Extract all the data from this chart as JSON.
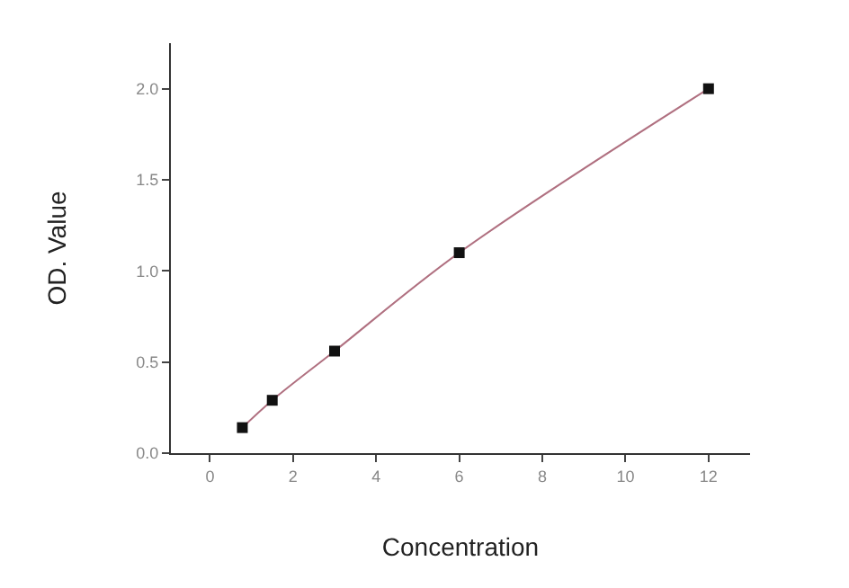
{
  "chart_data": {
    "type": "scatter",
    "xlabel": "Concentration",
    "ylabel": "OD. Value",
    "xlim": [
      -0.94,
      13
    ],
    "xticks": [
      0,
      2,
      4,
      6,
      8,
      10,
      12
    ],
    "ylim": [
      0,
      2.25
    ],
    "yticks": [
      {
        "value": 0,
        "label": "0.0"
      },
      {
        "value": 0.5,
        "label": "0.5"
      },
      {
        "value": 1,
        "label": "1.0"
      },
      {
        "value": 1.5,
        "label": "1.5"
      },
      {
        "value": 2,
        "label": "2.0"
      }
    ],
    "series": [
      {
        "type": "line",
        "color": "#b07080",
        "marker": "none",
        "x": [
          0.78,
          1.5,
          3,
          6,
          12
        ],
        "values": [
          0.14,
          0.29,
          0.56,
          1.1,
          2.0
        ]
      },
      {
        "color": "#111111",
        "marker": "square",
        "x": [
          0.78,
          1.5,
          3,
          6,
          12
        ],
        "values": [
          0.14,
          0.29,
          0.56,
          1.1,
          2.0
        ]
      }
    ]
  }
}
